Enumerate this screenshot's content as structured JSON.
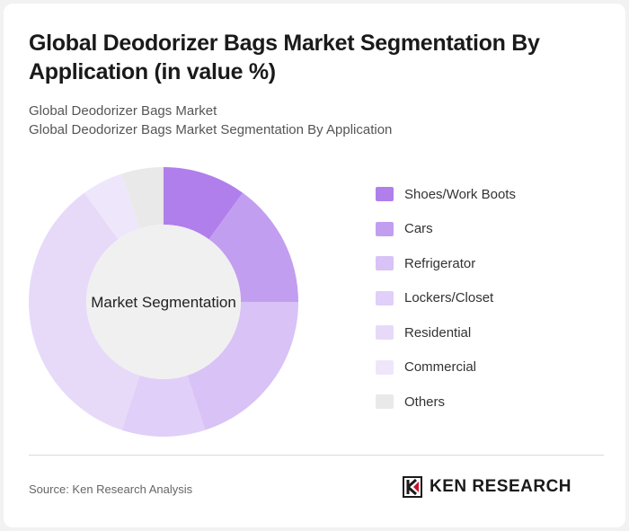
{
  "header": {
    "title": "Global Deodorizer Bags Market Segmentation By Application (in value %)",
    "subtitle_1": "Global Deodorizer Bags Market",
    "subtitle_2": "Global Deodorizer Bags Market Segmentation By Application"
  },
  "chart_data": {
    "type": "pie",
    "variant": "donut",
    "center_label": "Market Segmentation",
    "legend_position": "right",
    "categories": [
      "Shoes/Work Boots",
      "Cars",
      "Refrigerator",
      "Lockers/Closet",
      "Residential",
      "Commercial",
      "Others"
    ],
    "values": [
      10,
      15,
      20,
      10,
      35,
      5,
      5
    ],
    "colors": [
      "#b07fec",
      "#c29ef0",
      "#d8c2f6",
      "#e0cff8",
      "#e7daf9",
      "#eee6fb",
      "#e9e9e9"
    ],
    "units": "%"
  },
  "footer": {
    "source": "Source: Ken Research Analysis",
    "logo_text": "KEN RESEARCH"
  }
}
